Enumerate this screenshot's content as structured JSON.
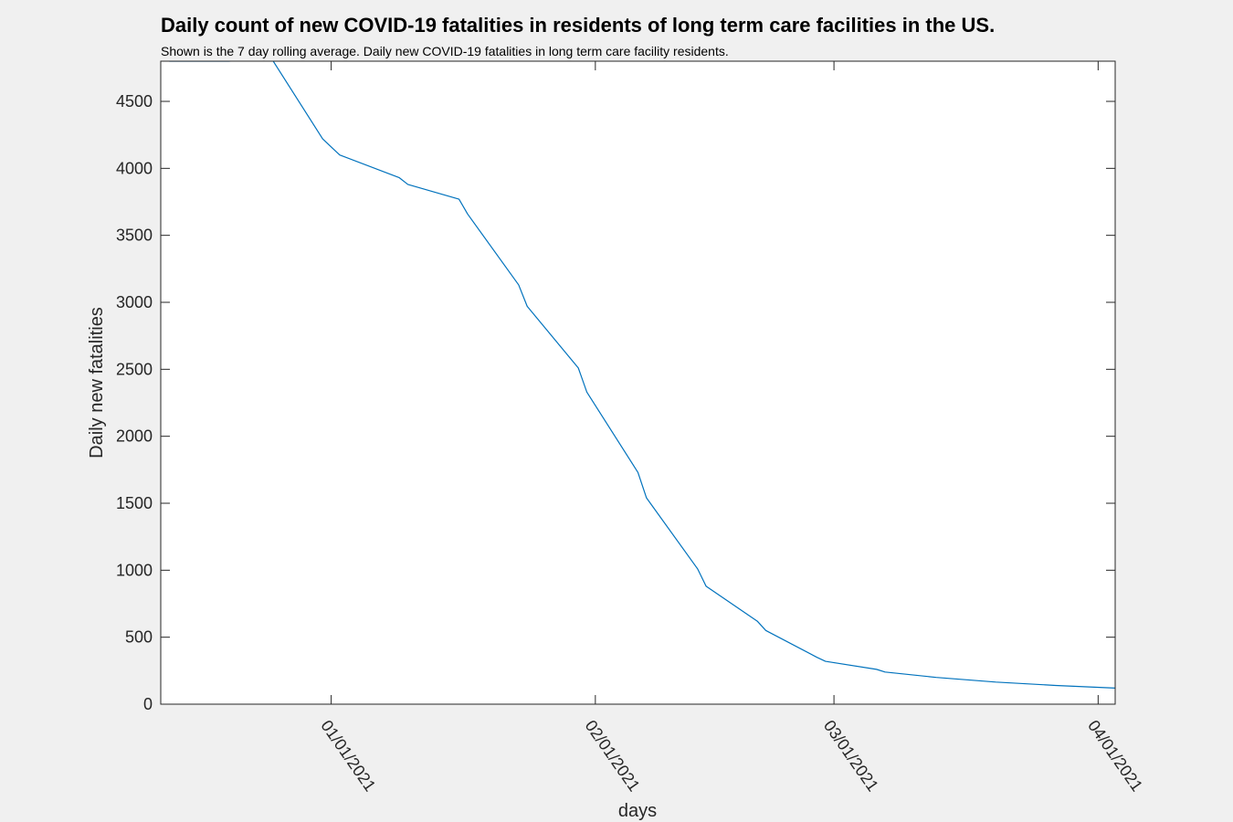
{
  "chart_data": {
    "type": "line",
    "title": "Daily count of new COVID-19 fatalities in residents of long term care facilities in the US.",
    "subtitle": "Shown is the 7 day rolling average. Daily new COVID-19 fatalities in long term care facility residents.",
    "xlabel": "days",
    "ylabel": "Daily new fatalities",
    "xlim": [
      "2020-12-12",
      "2021-04-03"
    ],
    "ylim": [
      0,
      4800
    ],
    "x_tick_values": [
      "2021-01-01",
      "2021-02-01",
      "2021-03-01",
      "2021-04-01"
    ],
    "x_tick_labels": [
      "01/01/2021",
      "02/01/2021",
      "03/01/2021",
      "04/01/2021"
    ],
    "y_ticks": [
      0,
      500,
      1000,
      1500,
      2000,
      2500,
      3000,
      3500,
      4000,
      4500
    ],
    "grid": false,
    "legend": "none",
    "line_color": "#0072bd",
    "series": [
      {
        "x": [
          "2020-12-13",
          "2020-12-20",
          "2020-12-25",
          "2020-12-31",
          "2021-01-02",
          "2021-01-09",
          "2021-01-10",
          "2021-01-16",
          "2021-01-17",
          "2021-01-23",
          "2021-01-24",
          "2021-01-30",
          "2021-01-31",
          "2021-02-06",
          "2021-02-07",
          "2021-02-13",
          "2021-02-14",
          "2021-02-20",
          "2021-02-21",
          "2021-02-27",
          "2021-02-28",
          "2021-03-06",
          "2021-03-07",
          "2021-03-13",
          "2021-03-20",
          "2021-03-27",
          "2021-04-03"
        ],
        "y": [
          4800,
          4800,
          4820,
          4220,
          4100,
          3930,
          3880,
          3770,
          3660,
          3130,
          2970,
          2510,
          2330,
          1730,
          1540,
          1010,
          880,
          620,
          550,
          350,
          320,
          260,
          240,
          200,
          165,
          140,
          120
        ]
      }
    ]
  }
}
